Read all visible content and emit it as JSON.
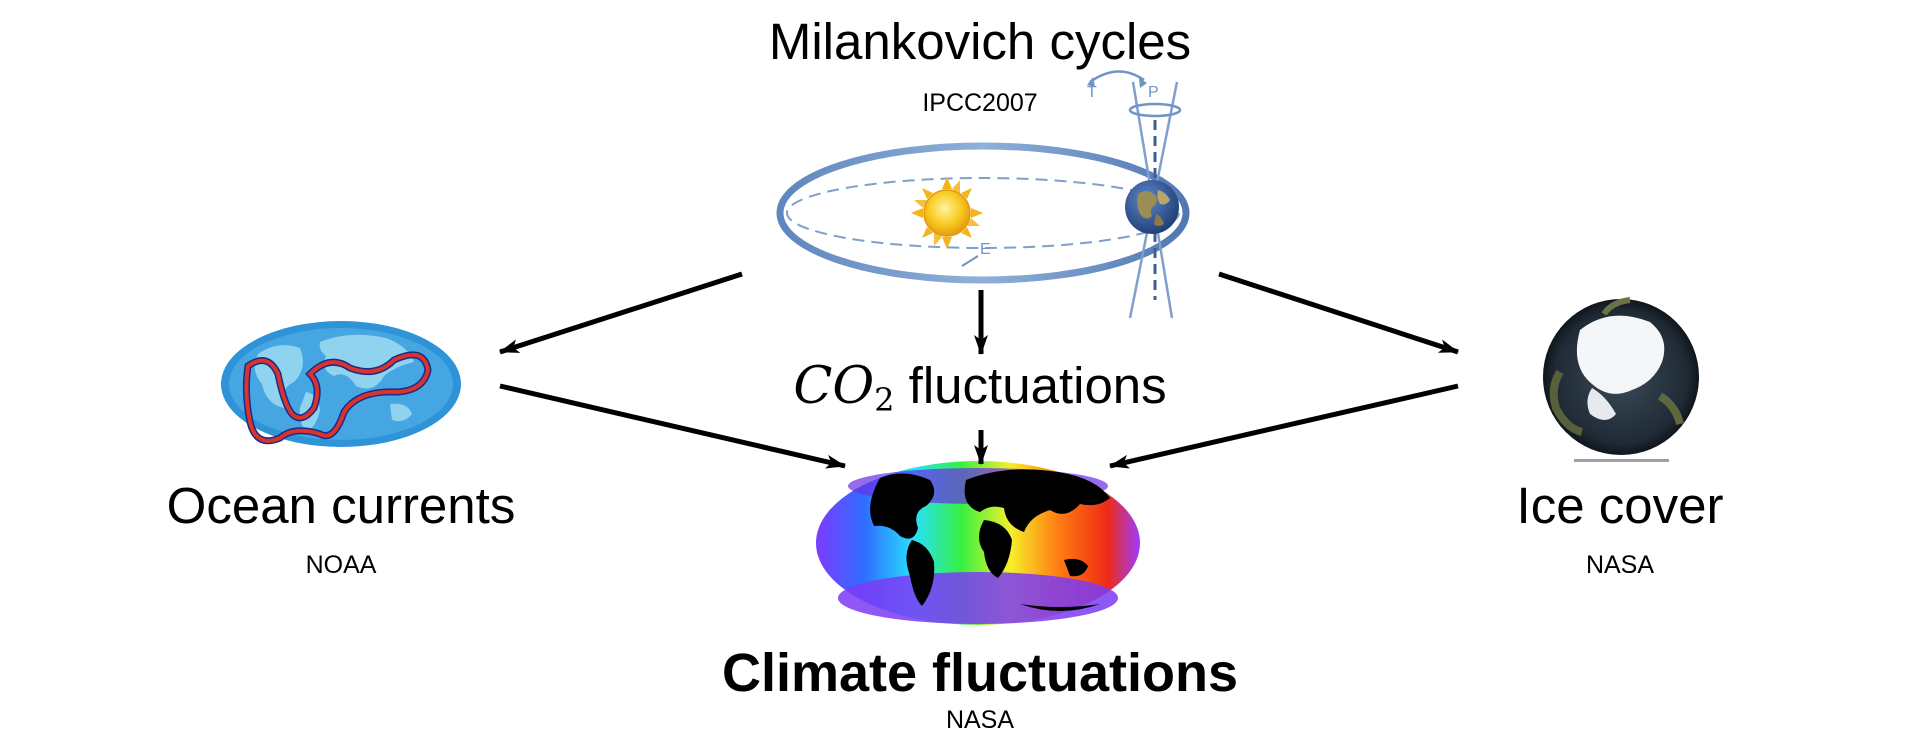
{
  "top": {
    "title": "Milankovich cycles",
    "source": "IPCC2007"
  },
  "orbit_labels": {
    "tilt": "T",
    "precession": "P",
    "eccentricity": "E"
  },
  "co2": {
    "math": "CO",
    "subscript": "2",
    "text": " fluctuations"
  },
  "left": {
    "title": "Ocean currents",
    "source": "NOAA"
  },
  "right": {
    "title": "Ice cover",
    "source": "NASA"
  },
  "bottom": {
    "title": "Climate fluctuations",
    "source": "NASA"
  },
  "colors": {
    "orbit": "#6f94c6",
    "sun": "#f6c21c",
    "ocean": "#2f93d8",
    "current": "#d9342b",
    "arrow": "#000000"
  }
}
